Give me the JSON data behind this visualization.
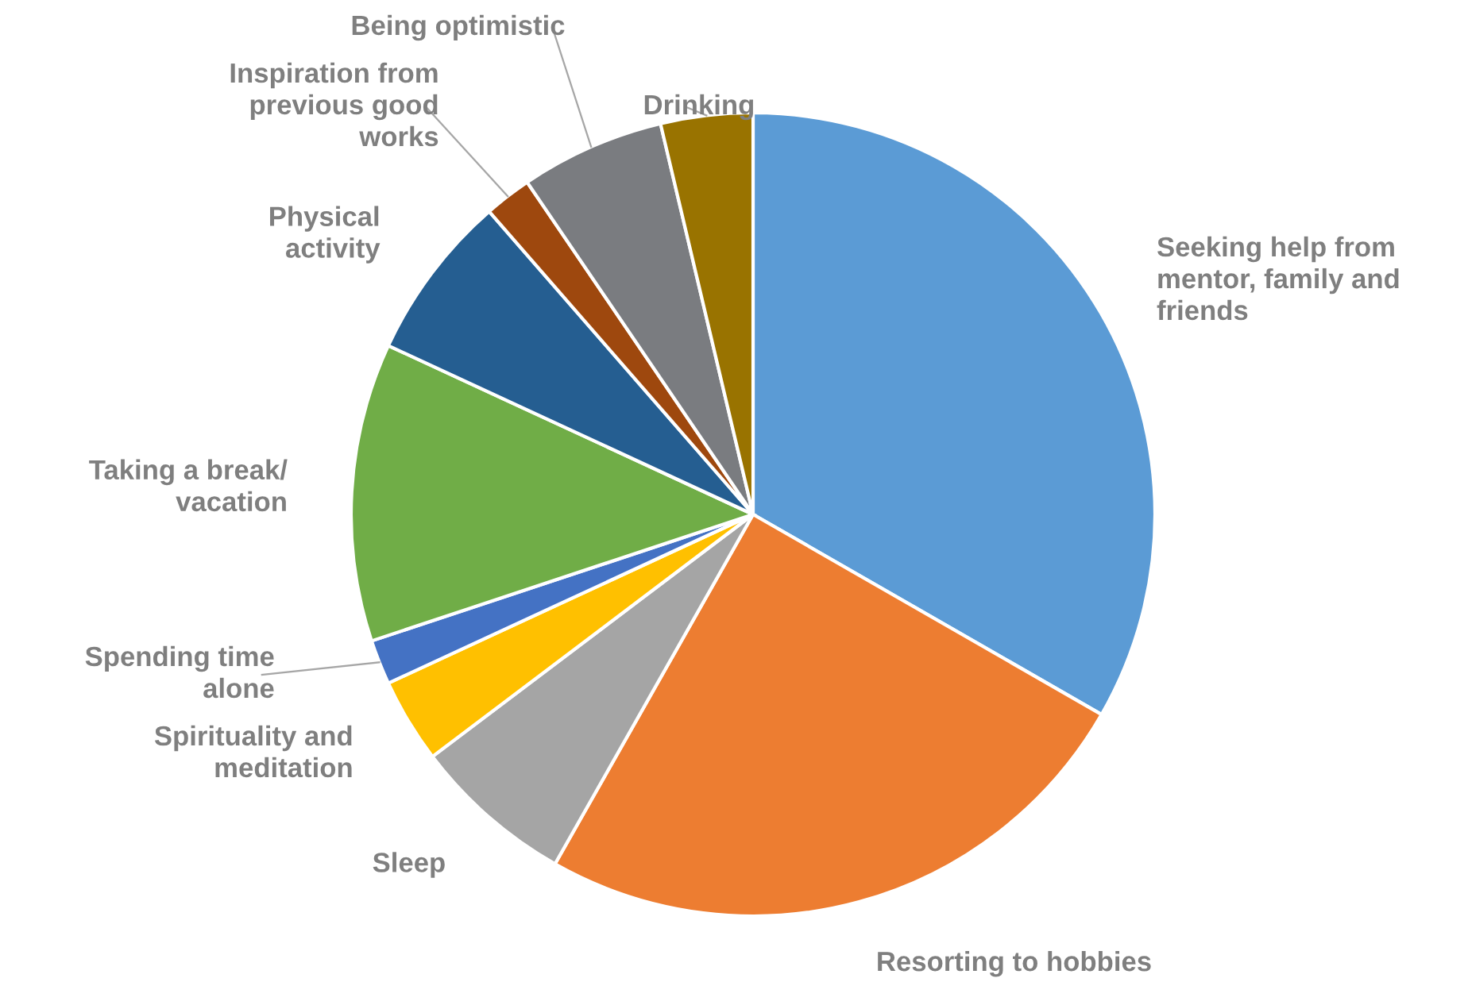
{
  "chart_data": {
    "type": "pie",
    "categories": [
      "Seeking help from mentor, family and friends",
      "Resorting to hobbies",
      "Sleep",
      "Spirituality and meditation",
      "Spending time alone",
      "Taking a break/ vacation",
      "Physical activity",
      "Inspiration from previous good works",
      "Being optimistic",
      "Drinking"
    ],
    "values": [
      33.3,
      24.9,
      6.5,
      3.4,
      1.8,
      12,
      6.7,
      1.9,
      5.8,
      3.7
    ],
    "colors": [
      "#5b9bd5",
      "#ed7d31",
      "#a5a5a5",
      "#ffc000",
      "#4472c4",
      "#70ad47",
      "#255e91",
      "#9e480e",
      "#7a7c80",
      "#997300"
    ],
    "legend": false
  }
}
